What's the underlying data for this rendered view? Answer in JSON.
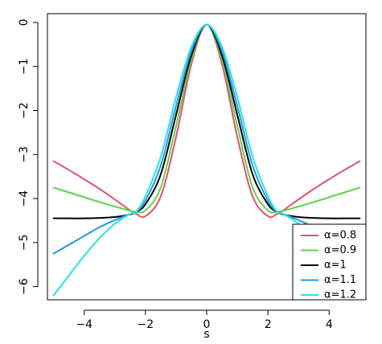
{
  "chart_data": {
    "type": "line",
    "xlabel": "s",
    "ylabel": "",
    "xlim": [
      -5.2,
      5.2
    ],
    "ylim": [
      -6.3,
      0.2
    ],
    "xticks": [
      -4,
      -2,
      0,
      2,
      4
    ],
    "yticks": [
      0,
      -1,
      -2,
      -3,
      -4,
      -5,
      -6
    ],
    "xtick_labels": [
      "−4",
      "−2",
      "0",
      "2",
      "4"
    ],
    "ytick_labels": [
      "0",
      "−1",
      "−2",
      "−3",
      "−4",
      "−5",
      "−6"
    ],
    "legend_position": "bottom-right",
    "x": [
      -5,
      -4.5,
      -4,
      -3.5,
      -3,
      -2.5,
      -2.3,
      -2,
      -1.5,
      -1,
      -0.5,
      0,
      0.5,
      1,
      1.5,
      2,
      2.3,
      2.5,
      3,
      3.5,
      4,
      4.5,
      5
    ],
    "series": [
      {
        "name": "α=0.8",
        "color": "#DF536B",
        "values": [
          -3.15,
          -3.35,
          -3.56,
          -3.78,
          -4.02,
          -4.27,
          -4.35,
          -4.4,
          -3.95,
          -2.6,
          -0.95,
          -0.05,
          -0.95,
          -2.6,
          -3.95,
          -4.4,
          -4.35,
          -4.27,
          -4.02,
          -3.78,
          -3.56,
          -3.35,
          -3.15
        ]
      },
      {
        "name": "α=0.9",
        "color": "#61D04F",
        "values": [
          -3.75,
          -3.86,
          -3.97,
          -4.08,
          -4.18,
          -4.28,
          -4.3,
          -4.27,
          -3.75,
          -2.35,
          -0.85,
          -0.05,
          -0.85,
          -2.35,
          -3.75,
          -4.27,
          -4.3,
          -4.28,
          -4.18,
          -4.08,
          -3.97,
          -3.86,
          -3.75
        ]
      },
      {
        "name": "α=1",
        "color": "#000000",
        "values": [
          -4.45,
          -4.45,
          -4.45,
          -4.44,
          -4.42,
          -4.36,
          -4.3,
          -4.13,
          -3.45,
          -2.1,
          -0.75,
          -0.05,
          -0.75,
          -2.1,
          -3.45,
          -4.13,
          -4.3,
          -4.36,
          -4.42,
          -4.44,
          -4.45,
          -4.45,
          -4.45
        ]
      },
      {
        "name": "α=1.1",
        "color": "#2297E6",
        "values": [
          -5.25,
          -5.05,
          -4.85,
          -4.65,
          -4.49,
          -4.35,
          -4.3,
          -4.05,
          -3.25,
          -1.9,
          -0.65,
          -0.05,
          -0.65,
          -1.9,
          -3.25,
          -4.05,
          -4.3,
          -4.35,
          -4.49,
          -4.65,
          -4.85,
          -5.05,
          -5.25
        ]
      },
      {
        "name": "α=1.2",
        "color": "#28E2E5",
        "values": [
          -6.2,
          -5.75,
          -5.3,
          -4.9,
          -4.57,
          -4.35,
          -4.3,
          -3.95,
          -3.05,
          -1.7,
          -0.55,
          -0.05,
          -0.55,
          -1.7,
          -3.05,
          -3.95,
          -4.3,
          -4.35,
          -4.57,
          -4.9,
          -5.3,
          -5.75,
          -6.2
        ]
      }
    ]
  }
}
